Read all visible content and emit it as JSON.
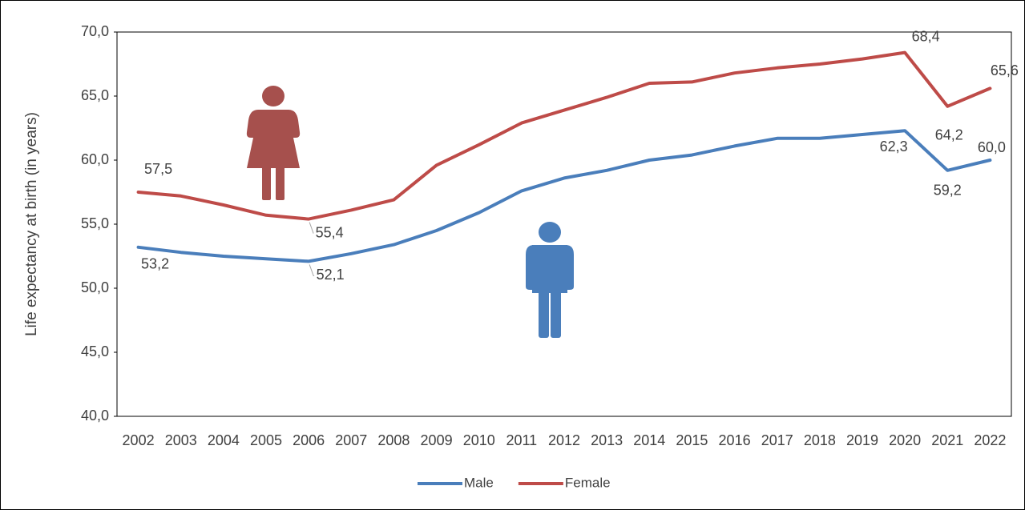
{
  "chart_data": {
    "type": "line",
    "y_label": "Life expectancy at birth (in years)",
    "categories": [
      "2002",
      "2003",
      "2004",
      "2005",
      "2006",
      "2007",
      "2008",
      "2009",
      "2010",
      "2011",
      "2012",
      "2013",
      "2014",
      "2015",
      "2016",
      "2017",
      "2018",
      "2019",
      "2020",
      "2021",
      "2022"
    ],
    "ylim": [
      40,
      70
    ],
    "yticks": [
      {
        "value": 40,
        "label": "40,0"
      },
      {
        "value": 45,
        "label": "45,0"
      },
      {
        "value": 50,
        "label": "50,0"
      },
      {
        "value": 55,
        "label": "55,0"
      },
      {
        "value": 60,
        "label": "60,0"
      },
      {
        "value": 65,
        "label": "65,0"
      },
      {
        "value": 70,
        "label": "70,0"
      }
    ],
    "series": [
      {
        "name": "Male",
        "color": "#4a7ebb",
        "values": [
          53.2,
          52.8,
          52.5,
          52.3,
          52.1,
          52.7,
          53.4,
          54.5,
          55.9,
          57.6,
          58.6,
          59.2,
          60.0,
          60.4,
          61.1,
          61.7,
          61.7,
          62.0,
          62.3,
          59.2,
          60.0
        ],
        "value_labels": [
          "53,2",
          null,
          null,
          null,
          "52,1",
          null,
          null,
          null,
          null,
          null,
          null,
          null,
          null,
          null,
          null,
          null,
          null,
          null,
          "62,3",
          "59,2",
          "60,0"
        ]
      },
      {
        "name": "Female",
        "color": "#be4b48",
        "values": [
          57.5,
          57.2,
          56.5,
          55.7,
          55.4,
          56.1,
          56.9,
          59.6,
          61.2,
          62.9,
          63.9,
          64.9,
          66.0,
          66.1,
          66.8,
          67.2,
          67.5,
          67.9,
          68.4,
          64.2,
          65.6
        ],
        "value_labels": [
          "57,5",
          null,
          null,
          null,
          "55,4",
          null,
          null,
          null,
          null,
          null,
          null,
          null,
          null,
          null,
          null,
          null,
          null,
          null,
          "68,4",
          "64,2",
          "65,6"
        ]
      }
    ],
    "legend": "bottom"
  }
}
